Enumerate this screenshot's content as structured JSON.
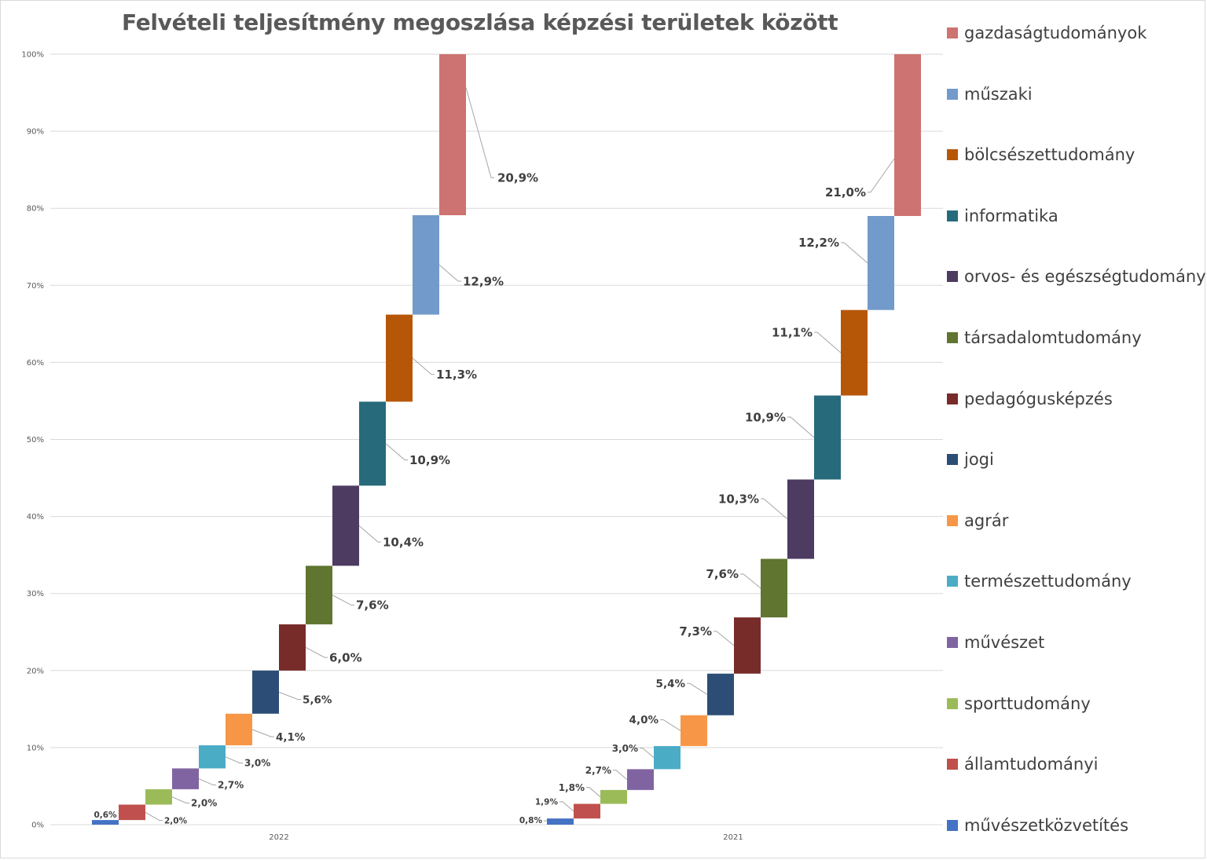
{
  "chart_data": {
    "type": "bar",
    "subtype": "stacked-waterfall",
    "title": "Felvételi teljesítmény megoszlása képzési területek között",
    "xlabel": "",
    "ylabel": "",
    "ylim": [
      0,
      100
    ],
    "y_ticks": [
      "0%",
      "10%",
      "20%",
      "30%",
      "40%",
      "50%",
      "60%",
      "70%",
      "80%",
      "90%",
      "100%"
    ],
    "grid": true,
    "legend_position": "right",
    "categories": [
      "2022",
      "2021"
    ],
    "series": [
      {
        "name": "művészetközvetítés",
        "color": "#4472c4",
        "values": [
          0.6,
          0.8
        ],
        "labels": [
          "0,6%",
          "0,8%"
        ]
      },
      {
        "name": "államtudományi",
        "color": "#c0504d",
        "values": [
          2.0,
          1.9
        ],
        "labels": [
          "2,0%",
          "1,9%"
        ]
      },
      {
        "name": "sporttudomány",
        "color": "#9bbb59",
        "values": [
          2.0,
          1.8
        ],
        "labels": [
          "2,0%",
          "1,8%"
        ]
      },
      {
        "name": "művészet",
        "color": "#8064a2",
        "values": [
          2.7,
          2.7
        ],
        "labels": [
          "2,7%",
          "2,7%"
        ]
      },
      {
        "name": "természettudomány",
        "color": "#4bacc6",
        "values": [
          3.0,
          3.0
        ],
        "labels": [
          "3,0%",
          "3,0%"
        ]
      },
      {
        "name": "agrár",
        "color": "#f79646",
        "values": [
          4.1,
          4.0
        ],
        "labels": [
          "4,1%",
          "4,0%"
        ]
      },
      {
        "name": "jogi",
        "color": "#2c4d75",
        "values": [
          5.6,
          5.4
        ],
        "labels": [
          "5,6%",
          "5,4%"
        ]
      },
      {
        "name": "pedagógusképzés",
        "color": "#772c2a",
        "values": [
          6.0,
          7.3
        ],
        "labels": [
          "6,0%",
          "7,3%"
        ]
      },
      {
        "name": "társadalomtudomány",
        "color": "#5f7530",
        "values": [
          7.6,
          7.6
        ],
        "labels": [
          "7,6%",
          "7,6%"
        ]
      },
      {
        "name": "orvos- és egészségtudomány",
        "color": "#4d3b62",
        "values": [
          10.4,
          10.3
        ],
        "labels": [
          "10,4%",
          "10,3%"
        ]
      },
      {
        "name": "informatika",
        "color": "#276a7c",
        "values": [
          10.9,
          10.9
        ],
        "labels": [
          "10,9%",
          "10,9%"
        ]
      },
      {
        "name": "bölcsészettudomány",
        "color": "#b65708",
        "values": [
          11.3,
          11.1
        ],
        "labels": [
          "11,3%",
          "11,1%"
        ]
      },
      {
        "name": "műszaki",
        "color": "#729aca",
        "values": [
          12.9,
          12.2
        ],
        "labels": [
          "12,9%",
          "12,2%"
        ]
      },
      {
        "name": "gazdaságtudományok",
        "color": "#cd7371",
        "values": [
          20.9,
          21.0
        ],
        "labels": [
          "20,9%",
          "21,0%"
        ]
      }
    ]
  }
}
